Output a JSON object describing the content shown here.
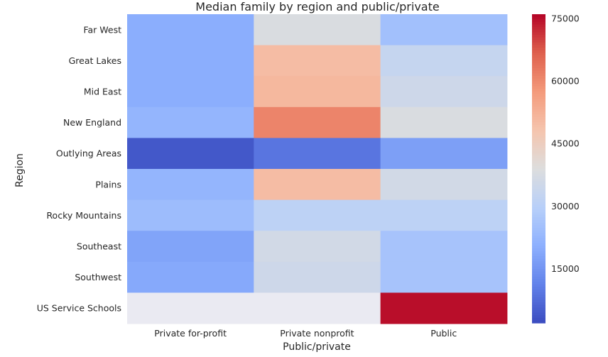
{
  "chart_data": {
    "type": "heatmap",
    "title": "Median family by region and public/private",
    "xlabel": "Public/private",
    "ylabel": "Region",
    "x_categories": [
      "Private for-profit",
      "Private nonprofit",
      "Public"
    ],
    "y_categories": [
      "Far West",
      "Great Lakes",
      "Mid East",
      "New England",
      "Outlying Areas",
      "Plains",
      "Rocky Mountains",
      "Southeast",
      "Southwest",
      "US Service Schools"
    ],
    "values": [
      [
        20000,
        38000,
        25000
      ],
      [
        20000,
        50000,
        33000
      ],
      [
        20000,
        51000,
        35000
      ],
      [
        22000,
        61000,
        38000
      ],
      [
        4000,
        9000,
        17000
      ],
      [
        22000,
        50000,
        36000
      ],
      [
        24000,
        31000,
        31000
      ],
      [
        18000,
        36000,
        26000
      ],
      [
        19000,
        35000,
        26000
      ],
      [
        null,
        null,
        75000
      ]
    ],
    "colormap": "coolwarm",
    "vmin": 2000,
    "vmax": 76000,
    "colorbar_ticks": [
      15000,
      30000,
      45000,
      60000,
      75000
    ],
    "colorbar_tick_labels": [
      "15000",
      "30000",
      "45000",
      "60000",
      "75000"
    ],
    "missing_color": "#eaeaf2",
    "grid": false
  }
}
